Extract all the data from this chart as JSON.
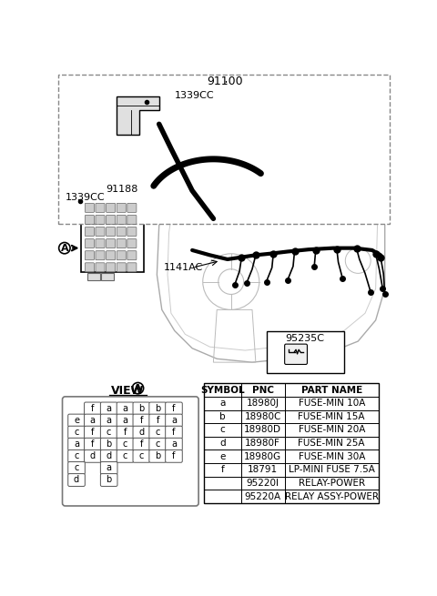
{
  "bg_color": "#ffffff",
  "part_number_top": "91100",
  "callout_top": "1339CC",
  "part_number_left": "91188",
  "callout_left": "1339CC",
  "label_mid": "1141AC",
  "label_box": "95235C",
  "table_headers": [
    "SYMBOL",
    "PNC",
    "PART NAME"
  ],
  "table_rows": [
    [
      "a",
      "18980J",
      "FUSE-MIN 10A"
    ],
    [
      "b",
      "18980C",
      "FUSE-MIN 15A"
    ],
    [
      "c",
      "18980D",
      "FUSE-MIN 20A"
    ],
    [
      "d",
      "18980F",
      "FUSE-MIN 25A"
    ],
    [
      "e",
      "18980G",
      "FUSE-MIN 30A"
    ],
    [
      "f",
      "18791",
      "LP-MINI FUSE 7.5A"
    ],
    [
      "",
      "95220I",
      "RELAY-POWER"
    ],
    [
      "",
      "95220A",
      "RELAY ASSY-POWER"
    ]
  ],
  "fuse_grid": [
    [
      " ",
      "f",
      "a",
      "a",
      "b",
      "b",
      "f"
    ],
    [
      "e",
      "a",
      "a",
      "a",
      "f",
      "f",
      "a"
    ],
    [
      "c",
      "f",
      "c",
      "f",
      "d",
      "c",
      "f"
    ],
    [
      "a",
      "f",
      "b",
      "c",
      "f",
      "c",
      "a"
    ],
    [
      "c",
      "d",
      "d",
      "c",
      "c",
      "b",
      "f"
    ],
    [
      "c",
      " ",
      "a",
      " ",
      " ",
      " ",
      " "
    ],
    [
      "d",
      " ",
      "b",
      " ",
      " ",
      " ",
      " "
    ]
  ]
}
